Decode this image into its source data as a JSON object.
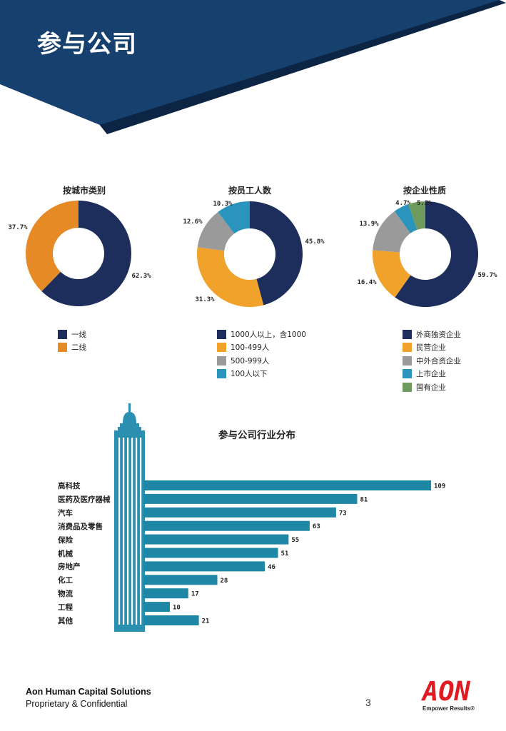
{
  "header": {
    "title": "参与公司"
  },
  "chart_data": [
    {
      "type": "pie",
      "title": "按城市类别",
      "slices": [
        {
          "label": "一线",
          "value": 62.3,
          "display": "62.3%",
          "color": "#1d2e5c"
        },
        {
          "label": "二线",
          "value": 37.7,
          "display": "37.7%",
          "color": "#e68a26"
        }
      ]
    },
    {
      "type": "pie",
      "title": "按员工人数",
      "slices": [
        {
          "label": "1000人以上，含1000",
          "value": 45.8,
          "display": "45.8%",
          "color": "#1d2e5c"
        },
        {
          "label": "100-499人",
          "value": 31.3,
          "display": "31.3%",
          "color": "#f0a22a"
        },
        {
          "label": "500-999人",
          "value": 12.6,
          "display": "12.6%",
          "color": "#9a9a9a"
        },
        {
          "label": "100人以下",
          "value": 10.3,
          "display": "10.3%",
          "color": "#2a94bd"
        }
      ]
    },
    {
      "type": "pie",
      "title": "按企业性质",
      "slices": [
        {
          "label": "外商独资企业",
          "value": 59.7,
          "display": "59.7%",
          "color": "#1d2e5c"
        },
        {
          "label": "民营企业",
          "value": 16.4,
          "display": "16.4%",
          "color": "#f0a22a"
        },
        {
          "label": "中外合资企业",
          "value": 13.9,
          "display": "13.9%",
          "color": "#9a9a9a"
        },
        {
          "label": "上市企业",
          "value": 4.7,
          "display": "4.7%",
          "color": "#2a94bd"
        },
        {
          "label": "国有企业",
          "value": 5.2,
          "display": "5.2%",
          "color": "#6f9a5e"
        }
      ]
    },
    {
      "type": "bar",
      "title": "参与公司行业分布",
      "categories": [
        "高科技",
        "医药及医疗器械",
        "汽车",
        "消费品及零售",
        "保险",
        "机械",
        "房地产",
        "化工",
        "物流",
        "工程",
        "其他"
      ],
      "values": [
        109,
        81,
        73,
        63,
        55,
        51,
        46,
        28,
        17,
        10,
        21
      ],
      "value_labels": [
        "109",
        "81",
        "73",
        "63",
        "55",
        "51",
        "46",
        "28",
        "17",
        "10",
        "21"
      ],
      "color": "#1f87a6"
    }
  ],
  "footer": {
    "company": "Aon Human Capital Solutions",
    "confidential": "Proprietary & Confidential",
    "page_number": "3",
    "logo_text": "AON",
    "logo_tagline": "Empower Results®"
  },
  "colors": {
    "banner": "#16406e",
    "banner_shadow": "#0c2544",
    "building": "#2a8fb0"
  }
}
